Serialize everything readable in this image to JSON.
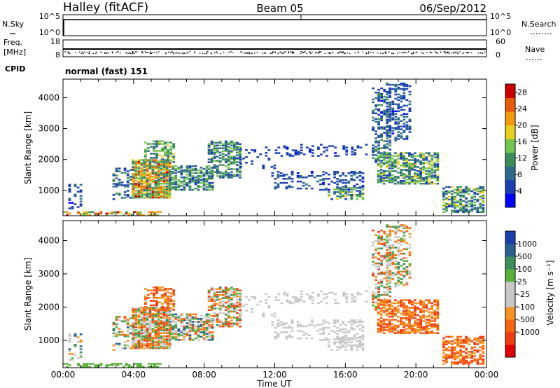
{
  "header": {
    "station": "Halley (fitACF)",
    "beam": "Beam 05",
    "date": "06/Sep/2012"
  },
  "params": {
    "nsky_label": "N.Sky",
    "nsearch_label": "N.Search",
    "freq_label_1": "Freq.",
    "freq_label_2": "[MHz]",
    "nave_label": "Nave",
    "cpid_label": "CPID",
    "cpid_value": "normal (fast) 151",
    "noise_ticks_left": [
      "10^5",
      "10^0"
    ],
    "noise_ticks_right": [
      "10^5",
      "10^0"
    ],
    "freq_ticks": [
      "18",
      "8"
    ],
    "nave_ticks": [
      "60",
      "0"
    ]
  },
  "colors": {
    "power": [
      "#0000ff",
      "#1a3fb0",
      "#2f6a8c",
      "#3c8c5a",
      "#74c450",
      "#e8d020",
      "#f39a10",
      "#e85a0a",
      "#cc0000"
    ],
    "velocity": [
      "#e00000",
      "#ee3d12",
      "#f56410",
      "#f59320",
      "#c8c8c8",
      "#c8c8c8",
      "#58b039",
      "#3f8c5c",
      "#2b5f8c",
      "#1c3fb0"
    ]
  },
  "chart_data": [
    {
      "type": "heatmap",
      "panel": "power",
      "title": "",
      "xlabel": "",
      "ylabel": "Slant Range [km]",
      "x_ticks": [
        "00:00",
        "04:00",
        "08:00",
        "12:00",
        "16:00",
        "20:00",
        "00:00"
      ],
      "x_range_hours": [
        0,
        24
      ],
      "y_ticks": [
        1000,
        2000,
        3000,
        4000
      ],
      "ylim": [
        180,
        4600
      ],
      "colorbar": {
        "label": "Power [dB]",
        "ticks": [
          "4",
          "8",
          "12",
          "16",
          "20",
          "24",
          "28"
        ],
        "range": [
          0,
          30
        ]
      },
      "echo_regions": [
        {
          "t": [
            0.3,
            1.0
          ],
          "range": [
            400,
            1250
          ],
          "density": 0.35,
          "value": [
            3,
            9
          ]
        },
        {
          "t": [
            2.8,
            4.0
          ],
          "range": [
            700,
            1700
          ],
          "density": 0.35,
          "value": [
            3,
            13
          ]
        },
        {
          "t": [
            3.9,
            6.0
          ],
          "range": [
            750,
            2000
          ],
          "density": 0.85,
          "value": [
            8,
            28
          ]
        },
        {
          "t": [
            4.6,
            6.3
          ],
          "range": [
            1900,
            2600
          ],
          "density": 0.5,
          "value": [
            7,
            18
          ]
        },
        {
          "t": [
            6.0,
            8.5
          ],
          "range": [
            1000,
            1800
          ],
          "density": 0.65,
          "value": [
            5,
            16
          ]
        },
        {
          "t": [
            8.2,
            10.0
          ],
          "range": [
            1400,
            2600
          ],
          "density": 0.6,
          "value": [
            5,
            16
          ]
        },
        {
          "t": [
            10.0,
            12.0
          ],
          "range": [
            1700,
            2400
          ],
          "density": 0.15,
          "value": [
            3,
            7
          ]
        },
        {
          "t": [
            11.8,
            17.0
          ],
          "range": [
            1000,
            1600
          ],
          "density": 0.3,
          "value": [
            3,
            9
          ]
        },
        {
          "t": [
            12.0,
            17.5
          ],
          "range": [
            2100,
            2500
          ],
          "density": 0.2,
          "value": [
            3,
            6
          ]
        },
        {
          "t": [
            15.0,
            17.0
          ],
          "range": [
            700,
            1100
          ],
          "density": 0.45,
          "value": [
            5,
            18
          ]
        },
        {
          "t": [
            17.5,
            18.6
          ],
          "range": [
            1900,
            4300
          ],
          "density": 0.45,
          "value": [
            3,
            13
          ]
        },
        {
          "t": [
            18.3,
            19.6
          ],
          "range": [
            2600,
            4450
          ],
          "density": 0.4,
          "value": [
            3,
            10
          ]
        },
        {
          "t": [
            17.8,
            21.2
          ],
          "range": [
            1200,
            2200
          ],
          "density": 0.65,
          "value": [
            4,
            18
          ]
        },
        {
          "t": [
            21.5,
            23.8
          ],
          "range": [
            280,
            1100
          ],
          "density": 0.55,
          "value": [
            4,
            18
          ]
        },
        {
          "t": [
            0.0,
            5.5
          ],
          "range": [
            190,
            320
          ],
          "density": 0.5,
          "value": [
            10,
            28
          ]
        }
      ]
    },
    {
      "type": "heatmap",
      "panel": "velocity",
      "title": "",
      "xlabel": "Time UT",
      "ylabel": "Slant Range [km]",
      "x_ticks": [
        "00:00",
        "04:00",
        "08:00",
        "12:00",
        "16:00",
        "20:00",
        "00:00"
      ],
      "x_range_hours": [
        0,
        24
      ],
      "y_ticks": [
        1000,
        2000,
        3000,
        4000
      ],
      "ylim": [
        180,
        4600
      ],
      "colorbar": {
        "label": "Velocity [m s⁻¹]",
        "ticks": [
          "1000",
          "500",
          "100",
          "25",
          "-25",
          "-100",
          "-500",
          "-1000"
        ]
      },
      "echo_regions": [
        {
          "t": [
            0.3,
            1.0
          ],
          "range": [
            400,
            1250
          ],
          "density": 0.35,
          "class": [
            3,
            8
          ]
        },
        {
          "t": [
            2.8,
            4.0
          ],
          "range": [
            700,
            1700
          ],
          "density": 0.35,
          "class": [
            2,
            8
          ]
        },
        {
          "t": [
            3.9,
            6.0
          ],
          "range": [
            750,
            2000
          ],
          "density": 0.85,
          "class": [
            1,
            7
          ]
        },
        {
          "t": [
            4.6,
            6.3
          ],
          "range": [
            1900,
            2600
          ],
          "density": 0.5,
          "class": [
            1,
            3
          ]
        },
        {
          "t": [
            6.0,
            8.5
          ],
          "range": [
            1000,
            1800
          ],
          "density": 0.65,
          "class": [
            2,
            8
          ]
        },
        {
          "t": [
            8.2,
            10.0
          ],
          "range": [
            1400,
            2600
          ],
          "density": 0.6,
          "class": [
            1,
            7
          ]
        },
        {
          "t": [
            10.0,
            12.0
          ],
          "range": [
            1700,
            2400
          ],
          "density": 0.15,
          "class": [
            4,
            5
          ]
        },
        {
          "t": [
            11.8,
            17.0
          ],
          "range": [
            1000,
            1600
          ],
          "density": 0.3,
          "class": [
            4,
            5
          ]
        },
        {
          "t": [
            12.0,
            17.5
          ],
          "range": [
            2100,
            2500
          ],
          "density": 0.2,
          "class": [
            4,
            5
          ]
        },
        {
          "t": [
            15.0,
            17.0
          ],
          "range": [
            700,
            1100
          ],
          "density": 0.45,
          "class": [
            4,
            5
          ]
        },
        {
          "t": [
            17.5,
            18.6
          ],
          "range": [
            1900,
            4300
          ],
          "density": 0.45,
          "class": [
            1,
            7
          ]
        },
        {
          "t": [
            18.3,
            19.6
          ],
          "range": [
            2600,
            4450
          ],
          "density": 0.4,
          "class": [
            2,
            7
          ]
        },
        {
          "t": [
            17.8,
            21.2
          ],
          "range": [
            1200,
            2200
          ],
          "density": 0.65,
          "class": [
            1,
            3
          ]
        },
        {
          "t": [
            21.5,
            23.8
          ],
          "range": [
            280,
            1100
          ],
          "density": 0.55,
          "class": [
            1,
            3
          ]
        },
        {
          "t": [
            0.0,
            5.5
          ],
          "range": [
            190,
            320
          ],
          "density": 0.5,
          "class": [
            6,
            6
          ]
        }
      ]
    }
  ]
}
